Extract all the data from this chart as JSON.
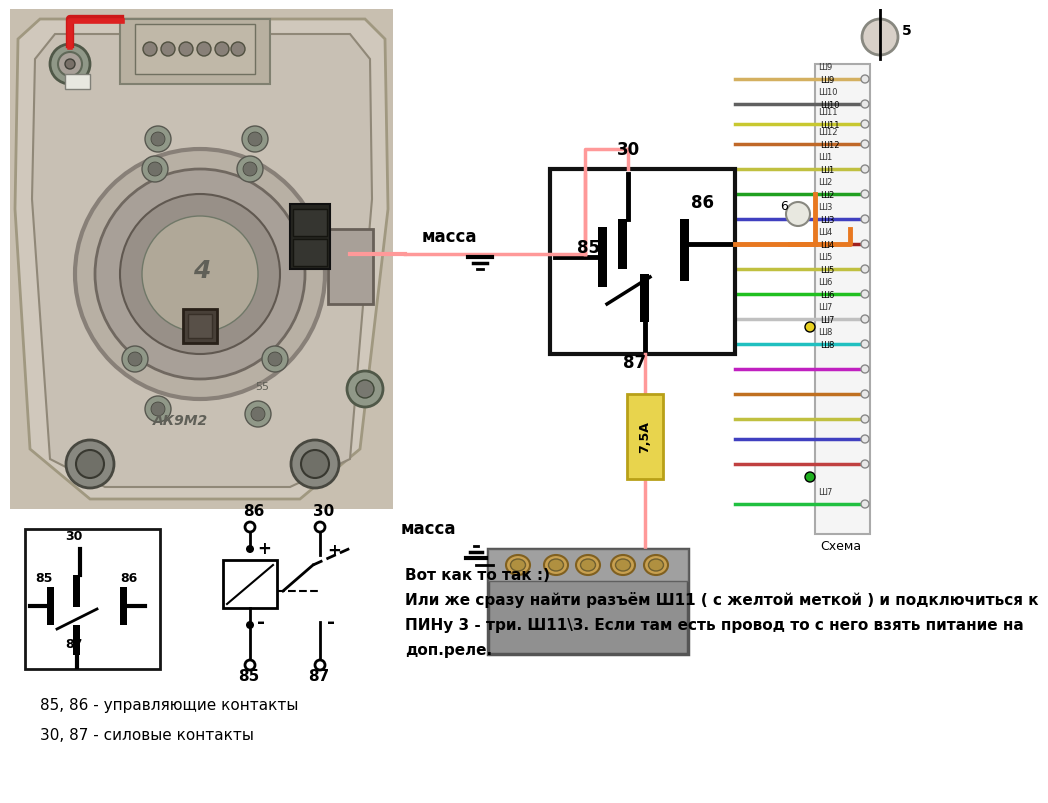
{
  "bg_color": "#ffffff",
  "text1": "Вот как то так :)",
  "text2": "Или же сразу найти разъём Ш11 ( с желтой меткой ) и подключиться к",
  "text3": "ПИНу 3 - три. Ш11\\3. Если там есть провод то с него взять питание на",
  "text4": "доп.реле.",
  "text5": "85, 86 - управляющие контакты",
  "text6": "30, 87 - силовые контакты",
  "massa_label": "масса",
  "fuse_label": "7,5А",
  "pink_line": "#ff9999",
  "orange_color": "#e87820",
  "fuse_color": "#e8d44d",
  "photo_bg": "#c8bfb0",
  "photo_bg2": "#b8b0a0"
}
